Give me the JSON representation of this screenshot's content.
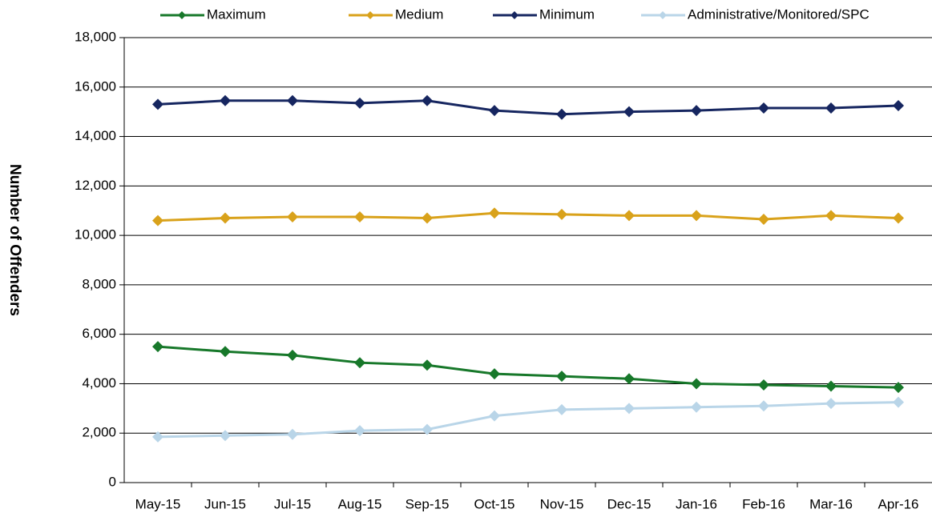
{
  "chart_data": {
    "type": "line",
    "y_label": "Number of Offenders",
    "categories": [
      "May-15",
      "Jun-15",
      "Jul-15",
      "Aug-15",
      "Sep-15",
      "Oct-15",
      "Nov-15",
      "Dec-15",
      "Jan-16",
      "Feb-16",
      "Mar-16",
      "Apr-16"
    ],
    "series": [
      {
        "name": "Maximum",
        "color": "#17782a",
        "values": [
          5500,
          5300,
          5150,
          4850,
          4750,
          4400,
          4300,
          4200,
          4000,
          3950,
          3900,
          3850
        ]
      },
      {
        "name": "Medium",
        "color": "#d9a21b",
        "values": [
          10600,
          10700,
          10750,
          10750,
          10700,
          10900,
          10850,
          10800,
          10800,
          10650,
          10800,
          10700
        ]
      },
      {
        "name": "Minimum",
        "color": "#162660",
        "values": [
          15300,
          15450,
          15450,
          15350,
          15450,
          15050,
          14900,
          15000,
          15050,
          15150,
          15150,
          15250
        ]
      },
      {
        "name": "Administrative/Monitored/SPC",
        "color": "#b9d5e8",
        "values": [
          1850,
          1900,
          1950,
          2100,
          2150,
          2700,
          2950,
          3000,
          3050,
          3100,
          3200,
          3250
        ]
      }
    ],
    "ylim": [
      0,
      18000
    ],
    "yticks": [
      0,
      {
        "value": 2000,
        "label": "2,000"
      },
      {
        "value": 4000,
        "label": "4,000"
      },
      {
        "value": 6000,
        "label": "6,000"
      },
      {
        "value": 8000,
        "label": "8,000"
      },
      {
        "value": 10000,
        "label": "10,000"
      },
      {
        "value": 12000,
        "label": "12,000"
      },
      {
        "value": 14000,
        "label": "14,000"
      },
      {
        "value": 16000,
        "label": "16,000"
      },
      {
        "value": 18000,
        "label": "18,000"
      }
    ],
    "grid": true,
    "legend": "top"
  }
}
